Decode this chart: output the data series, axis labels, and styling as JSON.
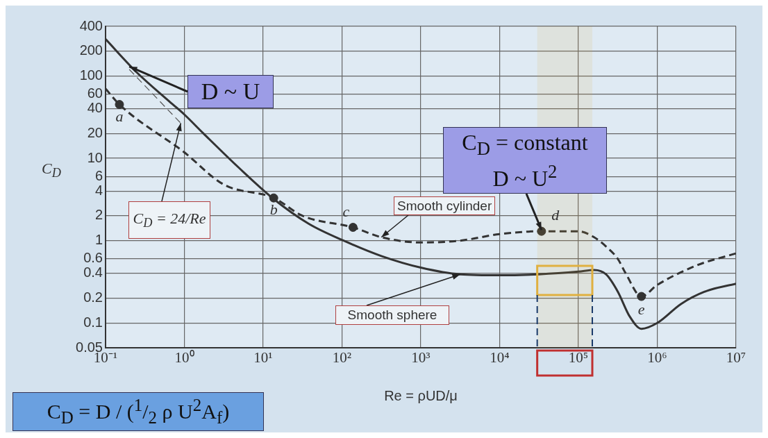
{
  "chart_data": {
    "type": "line",
    "xlabel": "Re = ρUD/μ",
    "ylabel": "C$_{D}$",
    "log": "xy",
    "grid": true,
    "legend": false,
    "xlim": [
      0.1,
      10000000
    ],
    "ylim": [
      0.05,
      400
    ],
    "xticks": [
      {
        "value": 0.1,
        "label": "10⁻¹"
      },
      {
        "value": 1,
        "label": "10⁰"
      },
      {
        "value": 10,
        "label": "10¹"
      },
      {
        "value": 100,
        "label": "10²"
      },
      {
        "value": 1000,
        "label": "10³"
      },
      {
        "value": 10000,
        "label": "10⁴"
      },
      {
        "value": 100000,
        "label": "10⁵"
      },
      {
        "value": 1000000,
        "label": "10⁶"
      },
      {
        "value": 10000000,
        "label": "10⁷"
      }
    ],
    "yticks": [
      0.05,
      0.1,
      0.2,
      0.4,
      0.6,
      1,
      2,
      4,
      6,
      10,
      20,
      40,
      60,
      100,
      200,
      400
    ],
    "series": [
      {
        "name": "Smooth sphere",
        "type": "line",
        "color": "#333333",
        "line_style": "solid",
        "marker": "none",
        "x": [
          0.1,
          0.25,
          0.63,
          1,
          1.75,
          4.9,
          13.6,
          38,
          105,
          316,
          1000,
          3160,
          10000,
          31600,
          100000,
          158000,
          224000,
          316000,
          447000,
          631000,
          1000000,
          2000000,
          4000000,
          10000000
        ],
        "values": [
          280,
          110,
          50,
          34,
          20,
          7.7,
          3.2,
          1.6,
          1.0,
          0.65,
          0.47,
          0.39,
          0.38,
          0.39,
          0.42,
          0.44,
          0.39,
          0.24,
          0.12,
          0.085,
          0.1,
          0.17,
          0.24,
          0.3
        ]
      },
      {
        "name": "Smooth cylinder",
        "type": "line",
        "color": "#333333",
        "line_style": "dashed",
        "marker": "none",
        "x": [
          0.1,
          0.15,
          1,
          3.16,
          13.6,
          31.6,
          138,
          316,
          1000,
          3160,
          10000,
          34000,
          100000,
          158000,
          224000,
          316000,
          398000,
          630000,
          1000000,
          3160000,
          10000000
        ],
        "values": [
          70,
          45,
          11.8,
          4.8,
          3.3,
          2.0,
          1.45,
          1.1,
          0.95,
          1.0,
          1.2,
          1.3,
          1.3,
          1.1,
          0.85,
          0.6,
          0.4,
          0.21,
          0.29,
          0.5,
          0.7
        ]
      },
      {
        "name": "C$_{D}$ = 24/Re",
        "type": "line",
        "color": "#555555",
        "line_style": "dashed",
        "marker": "none",
        "x": [
          0.2,
          0.9
        ],
        "values": [
          120,
          26.7
        ]
      },
      {
        "type": "scatter",
        "color": "#333333",
        "marker": "circle",
        "x": [
          0.15,
          13.6,
          138,
          34000,
          630000
        ],
        "values": [
          45,
          3.3,
          1.45,
          1.3,
          0.21
        ],
        "value_labels": [
          "a",
          "b",
          "c",
          "d",
          "e"
        ]
      }
    ],
    "ref_lines": [
      {
        "axis": "x",
        "value": 30000,
        "color": "#1a3a6a",
        "line_style": "dashed"
      },
      {
        "axis": "x",
        "value": 150000,
        "color": "#1a3a6a",
        "line_style": "dashed"
      }
    ],
    "bands": [
      {
        "axis": "x",
        "from": 30000,
        "to": 150000,
        "color": "#e0b040"
      }
    ],
    "annotations": [
      {
        "text": "D ~ U",
        "x": 0.2,
        "y": 130
      },
      {
        "text": "C$_{D}$ = constant\nD ~ U$^{2}$",
        "x": 34000,
        "y": 1.35
      },
      "C$_{D}$ = D / ($^{1}$/$_{2}$ ρ U$^{2}$A$_{f}$)"
    ]
  }
}
